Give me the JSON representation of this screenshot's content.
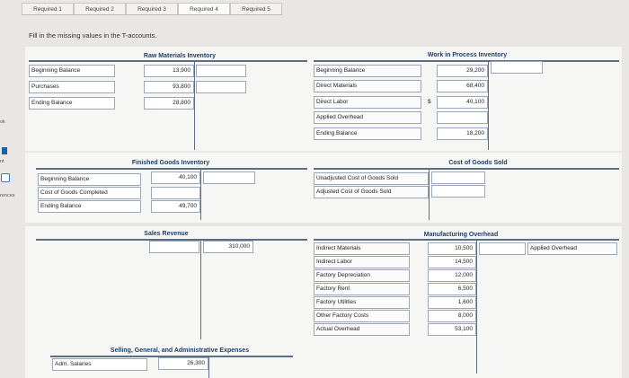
{
  "tabs": [
    "Required 1",
    "Required 2",
    "Required 3",
    "Required 4",
    "Required 5"
  ],
  "sidebar": {
    "frag1": "ok",
    "frag2": "nt",
    "frag3": "rences"
  },
  "instruction": "Fill in the missing values in the T-accounts.",
  "raw_materials": {
    "title": "Raw Materials Inventory",
    "rows": [
      {
        "label": "Beginning Balance",
        "value": "13,900"
      },
      {
        "label": "Purchases",
        "value": "93,800"
      },
      {
        "label": "Ending Balance",
        "value": "28,800"
      }
    ]
  },
  "wip": {
    "title": "Work in Process Inventory",
    "rows": [
      {
        "label": "Beginning Balance",
        "value": "29,200"
      },
      {
        "label": "Direct Materials",
        "value": "68,400"
      },
      {
        "label": "Direct Labor",
        "value": "40,100",
        "prefix": "$"
      },
      {
        "label": "Applied Overhead",
        "value": ""
      },
      {
        "label": "Ending Balance",
        "value": "18,200"
      }
    ]
  },
  "finished_goods": {
    "title": "Finished Goods Inventory",
    "rows": [
      {
        "label": "Beginning Balance",
        "value": "40,100"
      },
      {
        "label": "Cost of Goods Completed",
        "value": ""
      },
      {
        "label": "Ending Balance",
        "value": "49,700"
      }
    ]
  },
  "cogs": {
    "title": "Cost of Goods Sold",
    "rows": [
      {
        "label": "Unadjusted Cost of Goods Sold"
      },
      {
        "label": "Adjusted Cost of Goods Sold"
      }
    ]
  },
  "sales_revenue": {
    "title": "Sales Revenue",
    "value": "310,000"
  },
  "mfg_overhead": {
    "title": "Manufacturing Overhead",
    "right_label": "Applied Overhead",
    "rows": [
      {
        "label": "Indirect Materials",
        "value": "10,500"
      },
      {
        "label": "Indirect Labor",
        "value": "14,500"
      },
      {
        "label": "Factory Depreciation",
        "value": "12,000"
      },
      {
        "label": "Factory Rent",
        "value": "6,500"
      },
      {
        "label": "Factory Utilities",
        "value": "1,600"
      },
      {
        "label": "Other Factory Costs",
        "value": "8,000"
      },
      {
        "label": "Actual Overhead",
        "value": "53,100"
      }
    ]
  },
  "sga": {
    "title": "Selling, General, and Administrative Expenses",
    "rows": [
      {
        "label": "Adm. Salaries",
        "value": "26,300"
      }
    ]
  }
}
